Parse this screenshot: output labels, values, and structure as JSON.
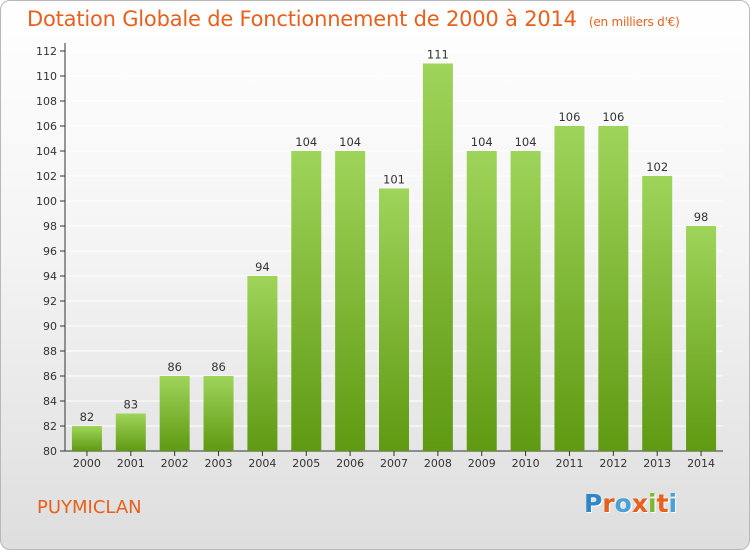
{
  "header": {
    "title": "Dotation Globale de Fonctionnement de 2000 à 2014",
    "unit": "(en milliers d'€)"
  },
  "footer": {
    "place": "PUYMICLAN",
    "logo_letters": [
      "P",
      "r",
      "o",
      "x",
      "i",
      "t",
      "i"
    ],
    "logo_colors": [
      "#2f86c8",
      "#e8601c",
      "#4aa0d8",
      "#e8601c",
      "#7cb82f",
      "#e8601c",
      "#4aa0d8"
    ]
  },
  "colors": {
    "bar_top": "#9fd45a",
    "bar_bottom": "#5f9a12",
    "title": "#e8601c",
    "grid": "#ffffff",
    "axis": "#333333"
  },
  "chart_data": {
    "type": "bar",
    "categories": [
      "2000",
      "2001",
      "2002",
      "2003",
      "2004",
      "2005",
      "2006",
      "2007",
      "2008",
      "2009",
      "2010",
      "2011",
      "2012",
      "2013",
      "2014"
    ],
    "values": [
      82,
      83,
      86,
      86,
      94,
      104,
      104,
      101,
      111,
      104,
      104,
      106,
      106,
      102,
      98
    ],
    "title": "Dotation Globale de Fonctionnement de 2000 à 2014",
    "subtitle": "(en milliers d'€)",
    "xlabel": "",
    "ylabel": "",
    "ylim": [
      80,
      112
    ],
    "yticks": [
      80,
      82,
      84,
      86,
      88,
      90,
      92,
      94,
      96,
      98,
      100,
      102,
      104,
      106,
      108,
      110,
      112
    ],
    "grid": true,
    "legend": "none"
  }
}
